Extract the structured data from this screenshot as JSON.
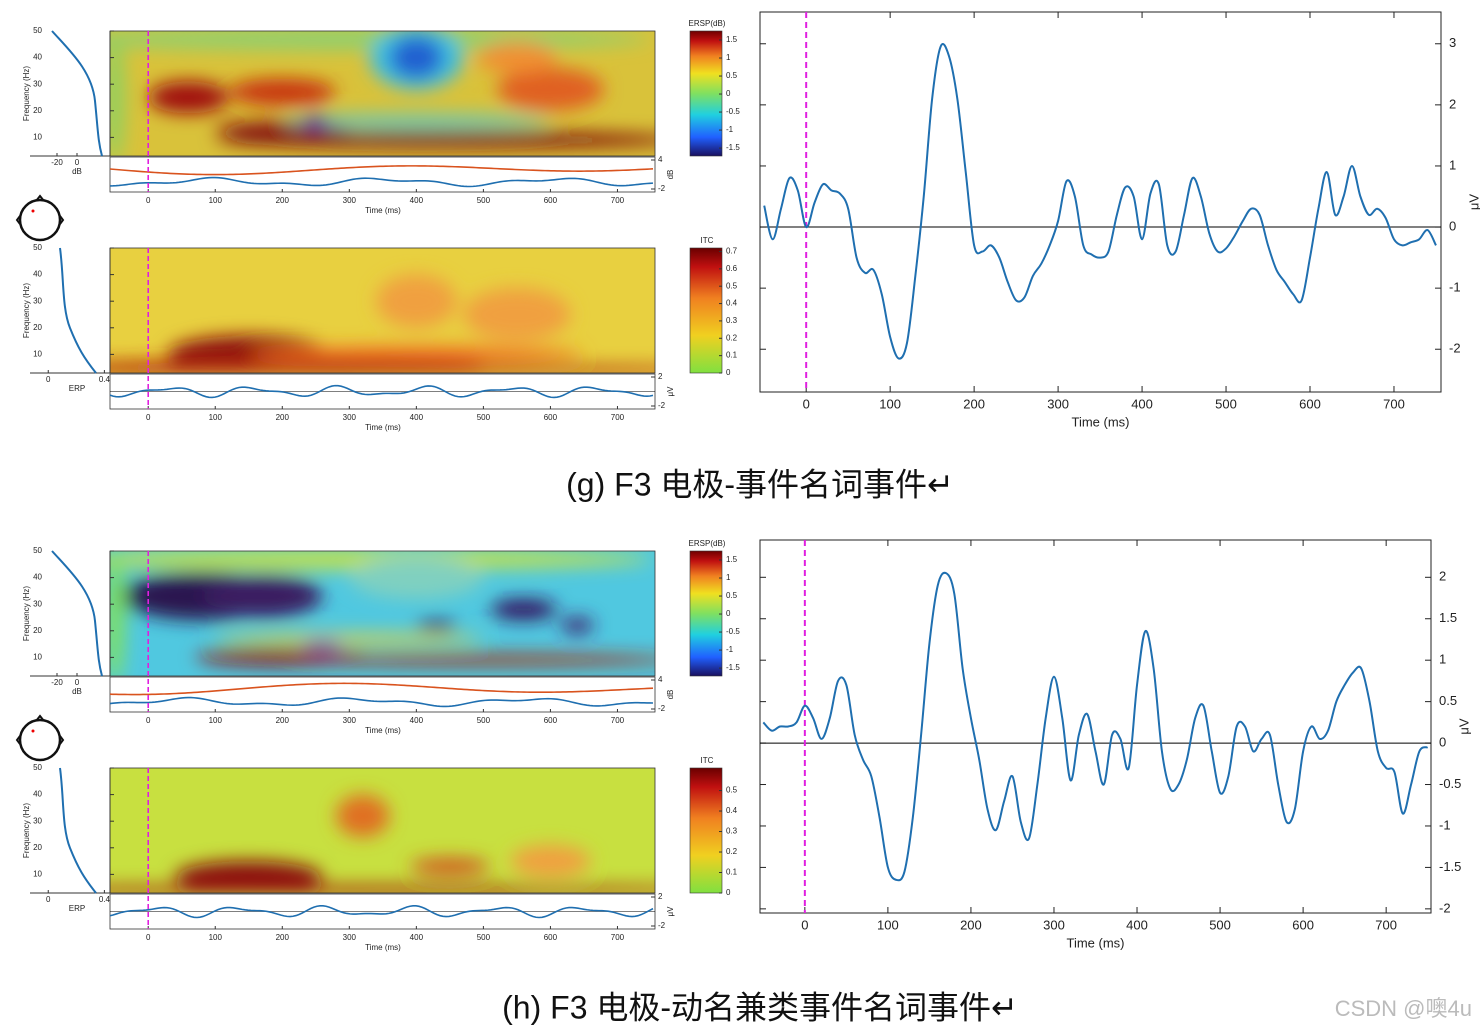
{
  "chart_data": [
    {
      "type": "line",
      "x_label": "Time (ms)",
      "y_label": "μV",
      "color": "#1f6fb0",
      "event_marker": 0,
      "event_color": "#e020e0",
      "zero_line": true,
      "xlim": [
        -55,
        756
      ],
      "ylim": [
        -2.7,
        3.52
      ],
      "xticks": [
        0,
        100,
        200,
        300,
        400,
        500,
        600,
        700
      ],
      "yticks": [
        -2,
        -1,
        0,
        1,
        2,
        3
      ],
      "x": [
        -50,
        -40,
        -30,
        -20,
        -10,
        0,
        10,
        20,
        30,
        40,
        50,
        60,
        70,
        80,
        90,
        100,
        110,
        120,
        130,
        140,
        150,
        160,
        170,
        180,
        190,
        200,
        210,
        220,
        230,
        240,
        250,
        260,
        270,
        280,
        290,
        300,
        310,
        320,
        330,
        340,
        350,
        360,
        370,
        380,
        390,
        400,
        410,
        420,
        430,
        440,
        450,
        460,
        470,
        480,
        490,
        500,
        510,
        520,
        530,
        540,
        550,
        560,
        570,
        580,
        590,
        600,
        610,
        620,
        630,
        640,
        650,
        660,
        670,
        680,
        690,
        700,
        710,
        720,
        730,
        740,
        750
      ],
      "values": [
        0.35,
        -0.2,
        0.3,
        0.8,
        0.6,
        0.0,
        0.4,
        0.7,
        0.6,
        0.55,
        0.3,
        -0.5,
        -0.75,
        -0.7,
        -1.1,
        -1.8,
        -2.15,
        -1.9,
        -0.8,
        0.5,
        2.1,
        2.95,
        2.8,
        2.1,
        0.9,
        -0.3,
        -0.4,
        -0.3,
        -0.5,
        -0.9,
        -1.2,
        -1.15,
        -0.8,
        -0.6,
        -0.3,
        0.1,
        0.75,
        0.5,
        -0.3,
        -0.45,
        -0.5,
        -0.4,
        0.2,
        0.65,
        0.5,
        -0.2,
        0.55,
        0.7,
        -0.3,
        -0.4,
        0.2,
        0.8,
        0.5,
        -0.1,
        -0.4,
        -0.35,
        -0.15,
        0.1,
        0.3,
        0.2,
        -0.3,
        -0.7,
        -0.9,
        -1.1,
        -1.2,
        -0.5,
        0.3,
        0.9,
        0.2,
        0.5,
        1.0,
        0.5,
        0.2,
        0.3,
        0.15,
        -0.2,
        -0.3,
        -0.25,
        -0.2,
        -0.05,
        -0.3
      ]
    },
    {
      "type": "line",
      "x_label": "Time (ms)",
      "y_label": "μV",
      "color": "#1f6fb0",
      "event_marker": 0,
      "event_color": "#e020e0",
      "zero_line": true,
      "xlim": [
        -54,
        754
      ],
      "ylim": [
        -2.05,
        2.45
      ],
      "xticks": [
        0,
        100,
        200,
        300,
        400,
        500,
        600,
        700
      ],
      "yticks": [
        -2,
        -1.5,
        -1,
        -0.5,
        0,
        0.5,
        1,
        1.5,
        2
      ],
      "x": [
        -50,
        -40,
        -30,
        -20,
        -10,
        0,
        10,
        20,
        30,
        40,
        50,
        60,
        70,
        80,
        90,
        100,
        110,
        120,
        130,
        140,
        150,
        160,
        170,
        180,
        190,
        200,
        210,
        220,
        230,
        240,
        250,
        260,
        270,
        280,
        290,
        300,
        310,
        320,
        330,
        340,
        350,
        360,
        370,
        380,
        390,
        400,
        410,
        420,
        430,
        440,
        450,
        460,
        470,
        480,
        490,
        500,
        510,
        520,
        530,
        540,
        550,
        560,
        570,
        580,
        590,
        600,
        610,
        620,
        630,
        640,
        650,
        660,
        670,
        680,
        690,
        700,
        710,
        720,
        730,
        740,
        750
      ],
      "values": [
        0.25,
        0.15,
        0.2,
        0.2,
        0.25,
        0.45,
        0.3,
        0.05,
        0.3,
        0.75,
        0.7,
        0.1,
        -0.2,
        -0.4,
        -0.9,
        -1.5,
        -1.65,
        -1.55,
        -0.9,
        0.1,
        1.2,
        1.9,
        2.05,
        1.8,
        0.9,
        0.3,
        -0.2,
        -0.8,
        -1.05,
        -0.7,
        -0.4,
        -0.95,
        -1.15,
        -0.5,
        0.3,
        0.8,
        0.3,
        -0.45,
        0.1,
        0.35,
        -0.1,
        -0.5,
        0.1,
        0.05,
        -0.3,
        0.7,
        1.35,
        0.9,
        -0.1,
        -0.55,
        -0.5,
        -0.2,
        0.3,
        0.45,
        -0.1,
        -0.6,
        -0.4,
        0.2,
        0.2,
        -0.1,
        0.05,
        0.1,
        -0.5,
        -0.95,
        -0.8,
        -0.1,
        0.2,
        0.05,
        0.15,
        0.5,
        0.7,
        0.85,
        0.9,
        0.5,
        -0.1,
        -0.3,
        -0.35,
        -0.85,
        -0.5,
        -0.1,
        -0.05
      ]
    }
  ],
  "tf_panels": [
    {
      "ersp_label": "ERSP(dB)",
      "ersp_lim": [
        -1.72,
        1.75
      ],
      "ersp_ticks": [
        1.5,
        1,
        0.5,
        0,
        -0.5,
        -1,
        -1.5
      ],
      "itc_label": "ITC",
      "itc_lim": [
        0,
        0.72
      ],
      "itc_ticks": [
        0.7,
        0.6,
        0.5,
        0.4,
        0.3,
        0.2,
        0.1,
        0
      ],
      "freq_label": "Frequency (Hz)",
      "freq_lim": [
        3,
        50
      ],
      "freq_ticks": [
        10,
        20,
        30,
        40,
        50
      ],
      "time_label": "Time (ms)",
      "time_lim": [
        -57,
        756
      ],
      "time_ticks": [
        0,
        100,
        200,
        300,
        400,
        500,
        600,
        700
      ],
      "db_label": "dB",
      "db_lim": [
        -47,
        33
      ],
      "db_ticks": [
        -20,
        0
      ],
      "erp_label": "ERP",
      "erp_lim": [
        -0.13,
        0.44
      ],
      "erp_ticks": [
        0,
        0.4
      ],
      "ersp_strip_label": "dB",
      "ersp_strip_ticks": [
        4,
        -2
      ],
      "erp_strip_label": "μV",
      "erp_strip_ticks": [
        2,
        -2
      ]
    },
    {
      "ersp_label": "ERSP(dB)",
      "ersp_lim": [
        -1.72,
        1.75
      ],
      "ersp_ticks": [
        1.5,
        1,
        0.5,
        0,
        -0.5,
        -1,
        -1.5
      ],
      "itc_label": "ITC",
      "itc_lim": [
        0,
        0.61
      ],
      "itc_ticks": [
        0.5,
        0.4,
        0.3,
        0.2,
        0.1,
        0
      ],
      "freq_label": "Frequency (Hz)",
      "freq_lim": [
        3,
        50
      ],
      "freq_ticks": [
        10,
        20,
        30,
        40,
        50
      ],
      "time_label": "Time (ms)",
      "time_lim": [
        -57,
        756
      ],
      "time_ticks": [
        0,
        100,
        200,
        300,
        400,
        500,
        600,
        700
      ],
      "db_label": "dB",
      "db_lim": [
        -47,
        33
      ],
      "db_ticks": [
        -20,
        0
      ],
      "erp_label": "ERP",
      "erp_lim": [
        -0.13,
        0.44
      ],
      "erp_ticks": [
        0,
        0.4
      ],
      "ersp_strip_label": "dB",
      "ersp_strip_ticks": [
        4,
        -2
      ],
      "erp_strip_label": "μV",
      "erp_strip_ticks": [
        2,
        -2
      ]
    }
  ],
  "captions": [
    "(g) F3 电极-事件名词事件↵",
    "(h) F3 电极-动名兼类事件名词事件↵"
  ],
  "watermark": "CSDN @噢4u"
}
